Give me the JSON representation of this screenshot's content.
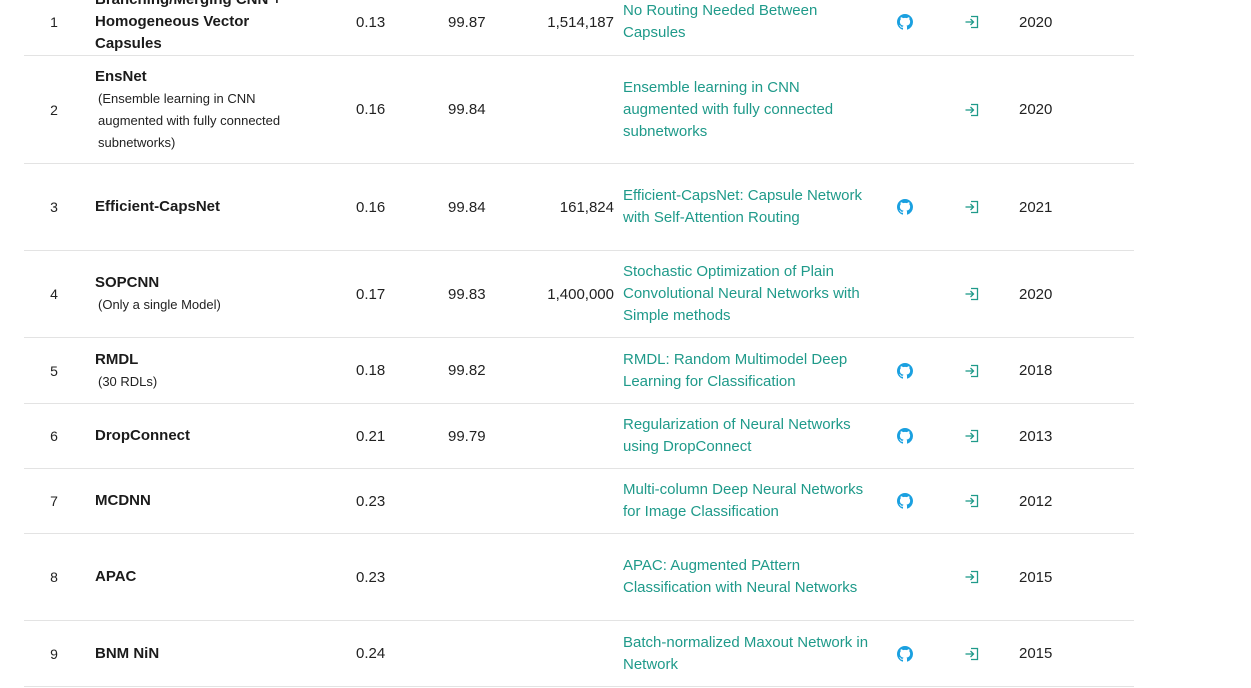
{
  "colors": {
    "link": "#1f9a8a",
    "github_icon": "#1aa0e0",
    "result_icon": "#1f9a8a",
    "divider": "#e3e3e3"
  },
  "icons": {
    "code": "github-icon",
    "result": "login-arrow-icon"
  },
  "rows": [
    {
      "rank": "1",
      "model": "Branching/Merging CNN + Homogeneous Vector Capsules",
      "extra": "",
      "error": "0.13",
      "accuracy": "99.87",
      "params": "1,514,187",
      "paper": "No Routing Needed Between Capsules",
      "has_code": true,
      "year": "2020"
    },
    {
      "rank": "2",
      "model": "EnsNet",
      "extra": "(Ensemble learning in CNN augmented with fully connected subnetworks)",
      "error": "0.16",
      "accuracy": "99.84",
      "params": "",
      "paper": "Ensemble learning in CNN augmented with fully connected subnetworks",
      "has_code": false,
      "year": "2020"
    },
    {
      "rank": "3",
      "model": "Efficient-CapsNet",
      "extra": "",
      "error": "0.16",
      "accuracy": "99.84",
      "params": "161,824",
      "paper": "Efficient-CapsNet: Capsule Network with Self-Attention Routing",
      "has_code": true,
      "year": "2021"
    },
    {
      "rank": "4",
      "model": "SOPCNN",
      "extra": "(Only a single Model)",
      "error": "0.17",
      "accuracy": "99.83",
      "params": "1,400,000",
      "paper": "Stochastic Optimization of Plain Convolutional Neural Networks with Simple methods",
      "has_code": false,
      "year": "2020"
    },
    {
      "rank": "5",
      "model": "RMDL",
      "extra": "(30 RDLs)",
      "error": "0.18",
      "accuracy": "99.82",
      "params": "",
      "paper": "RMDL: Random Multimodel Deep Learning for Classification",
      "has_code": true,
      "year": "2018"
    },
    {
      "rank": "6",
      "model": "DropConnect",
      "extra": "",
      "error": "0.21",
      "accuracy": "99.79",
      "params": "",
      "paper": "Regularization of Neural Networks using DropConnect",
      "has_code": true,
      "year": "2013"
    },
    {
      "rank": "7",
      "model": "MCDNN",
      "extra": "",
      "error": "0.23",
      "accuracy": "",
      "params": "",
      "paper": "Multi-column Deep Neural Networks for Image Classification",
      "has_code": true,
      "year": "2012"
    },
    {
      "rank": "8",
      "model": "APAC",
      "extra": "",
      "error": "0.23",
      "accuracy": "",
      "params": "",
      "paper": "APAC: Augmented PAttern Classification with Neural Networks",
      "has_code": false,
      "year": "2015"
    },
    {
      "rank": "9",
      "model": "BNM NiN",
      "extra": "",
      "error": "0.24",
      "accuracy": "",
      "params": "",
      "paper": "Batch-normalized Maxout Network in Network",
      "has_code": true,
      "year": "2015"
    }
  ]
}
